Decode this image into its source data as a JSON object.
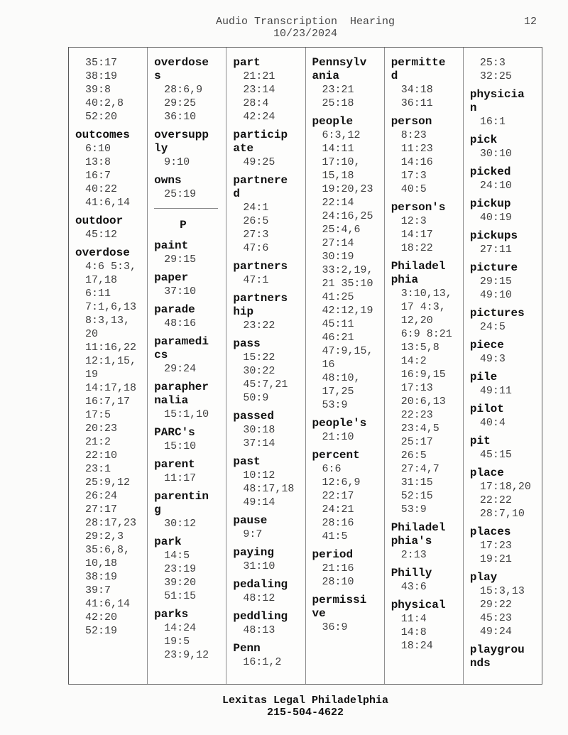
{
  "page": {
    "header": {
      "title": "Audio Transcription  Hearing",
      "page_number": "12",
      "date": "10/23/2024"
    },
    "footer": {
      "company": "Lexitas Legal Philadelphia",
      "phone": "215-504-4622"
    }
  },
  "index": {
    "columns": [
      {
        "entries": [
          {
            "word": null,
            "refs": [
              "35:17",
              "38:19",
              "39:8",
              "40:2,8",
              "52:20"
            ]
          },
          {
            "word": "outcomes",
            "refs": [
              "6:10",
              "13:8",
              "16:7",
              "40:22",
              "41:6,14"
            ]
          },
          {
            "word": "outdoor",
            "refs": [
              "45:12"
            ]
          },
          {
            "word": "overdose",
            "refs": [
              "4:6 5:3,",
              "17,18",
              "6:11",
              "7:1,6,13",
              "8:3,13,",
              "20",
              "11:16,22",
              "12:1,15,",
              "19",
              "14:17,18",
              "16:7,17",
              "17:5",
              "20:23",
              "21:2",
              "22:10",
              "23:1",
              "25:9,12",
              "26:24",
              "27:17",
              "28:17,23",
              "29:2,3",
              "35:6,8,",
              "10,18",
              "38:19",
              "39:7",
              "41:6,14",
              "42:20",
              "52:19"
            ]
          }
        ]
      },
      {
        "entries": [
          {
            "word": "overdoses",
            "refs": [
              "28:6,9",
              "29:25",
              "36:10"
            ]
          },
          {
            "word": "oversupply",
            "refs": [
              "9:10"
            ]
          },
          {
            "word": "owns",
            "refs": [
              "25:19"
            ]
          },
          {
            "section": "P"
          },
          {
            "word": "paint",
            "refs": [
              "29:15"
            ]
          },
          {
            "word": "paper",
            "refs": [
              "37:10"
            ]
          },
          {
            "word": "parade",
            "refs": [
              "48:16"
            ]
          },
          {
            "word": "paramedics",
            "refs": [
              "29:24"
            ]
          },
          {
            "word": "paraphernalia",
            "refs": [
              "15:1,10"
            ]
          },
          {
            "word": "PARC's",
            "refs": [
              "15:10"
            ]
          },
          {
            "word": "parent",
            "refs": [
              "11:17"
            ]
          },
          {
            "word": "parenting",
            "refs": [
              "30:12"
            ]
          },
          {
            "word": "park",
            "refs": [
              "14:5",
              "23:19",
              "39:20",
              "51:15"
            ]
          },
          {
            "word": "parks",
            "refs": [
              "14:24",
              "19:5",
              "23:9,12"
            ]
          }
        ]
      },
      {
        "entries": [
          {
            "word": "part",
            "refs": [
              "21:21",
              "23:14",
              "28:4",
              "42:24"
            ]
          },
          {
            "word": "participate",
            "refs": [
              "49:25"
            ]
          },
          {
            "word": "partnered",
            "refs": [
              "24:1",
              "26:5",
              "27:3",
              "47:6"
            ]
          },
          {
            "word": "partners",
            "refs": [
              "47:1"
            ]
          },
          {
            "word": "partnership",
            "refs": [
              "23:22"
            ]
          },
          {
            "word": "pass",
            "refs": [
              "15:22",
              "30:22",
              "45:7,21",
              "50:9"
            ]
          },
          {
            "word": "passed",
            "refs": [
              "30:18",
              "37:14"
            ]
          },
          {
            "word": "past",
            "refs": [
              "10:12",
              "48:17,18",
              "49:14"
            ]
          },
          {
            "word": "pause",
            "refs": [
              "9:7"
            ]
          },
          {
            "word": "paying",
            "refs": [
              "31:10"
            ]
          },
          {
            "word": "pedaling",
            "refs": [
              "48:12"
            ]
          },
          {
            "word": "peddling",
            "refs": [
              "48:13"
            ]
          },
          {
            "word": "Penn",
            "refs": [
              "16:1,2"
            ]
          }
        ]
      },
      {
        "entries": [
          {
            "word": "Pennsylvania",
            "refs": [
              "23:21",
              "25:18"
            ]
          },
          {
            "word": "people",
            "refs": [
              "6:3,12",
              "14:11",
              "17:10,",
              "15,18",
              "19:20,23",
              "22:14",
              "24:16,25",
              "25:4,6",
              "27:14",
              "30:19",
              "33:2,19,",
              "21 35:10",
              "41:25",
              "42:12,19",
              "45:11",
              "46:21",
              "47:9,15,",
              "16",
              "48:10,",
              "17,25",
              "53:9"
            ]
          },
          {
            "word": "people's",
            "refs": [
              "21:10"
            ]
          },
          {
            "word": "percent",
            "refs": [
              "6:6",
              "12:6,9",
              "22:17",
              "24:21",
              "28:16",
              "41:5"
            ]
          },
          {
            "word": "period",
            "refs": [
              "21:16",
              "28:10"
            ]
          },
          {
            "word": "permissive",
            "refs": [
              "36:9"
            ]
          }
        ]
      },
      {
        "entries": [
          {
            "word": "permitted",
            "refs": [
              "34:18",
              "36:11"
            ]
          },
          {
            "word": "person",
            "refs": [
              "8:23",
              "11:23",
              "14:16",
              "17:3",
              "40:5"
            ]
          },
          {
            "word": "person's",
            "refs": [
              "12:3",
              "14:17",
              "18:22"
            ]
          },
          {
            "word": "Philadelphia",
            "refs": [
              "3:10,13,",
              "17 4:3,",
              "12,20",
              "6:9 8:21",
              "13:5,8",
              "14:2",
              "16:9,15",
              "17:13",
              "20:6,13",
              "22:23",
              "23:4,5",
              "25:17",
              "26:5",
              "27:4,7",
              "31:15",
              "52:15",
              "53:9"
            ]
          },
          {
            "word": "Philadelphia's",
            "refs": [
              "2:13"
            ]
          },
          {
            "word": "Philly",
            "refs": [
              "43:6"
            ]
          },
          {
            "word": "physical",
            "refs": [
              "11:4",
              "14:8",
              "18:24"
            ]
          }
        ]
      },
      {
        "entries": [
          {
            "word": null,
            "refs": [
              "25:3",
              "32:25"
            ]
          },
          {
            "word": "physician",
            "refs": [
              "16:1"
            ]
          },
          {
            "word": "pick",
            "refs": [
              "30:10"
            ]
          },
          {
            "word": "picked",
            "refs": [
              "24:10"
            ]
          },
          {
            "word": "pickup",
            "refs": [
              "40:19"
            ]
          },
          {
            "word": "pickups",
            "refs": [
              "27:11"
            ]
          },
          {
            "word": "picture",
            "refs": [
              "29:15",
              "49:10"
            ]
          },
          {
            "word": "pictures",
            "refs": [
              "24:5"
            ]
          },
          {
            "word": "piece",
            "refs": [
              "49:3"
            ]
          },
          {
            "word": "pile",
            "refs": [
              "49:11"
            ]
          },
          {
            "word": "pilot",
            "refs": [
              "40:4"
            ]
          },
          {
            "word": "pit",
            "refs": [
              "45:15"
            ]
          },
          {
            "word": "place",
            "refs": [
              "17:18,20",
              "22:22",
              "28:7,10"
            ]
          },
          {
            "word": "places",
            "refs": [
              "17:23",
              "19:21"
            ]
          },
          {
            "word": "play",
            "refs": [
              "15:3,13",
              "29:22",
              "45:23",
              "49:24"
            ]
          },
          {
            "word": "playgrounds",
            "refs": []
          }
        ]
      }
    ]
  }
}
